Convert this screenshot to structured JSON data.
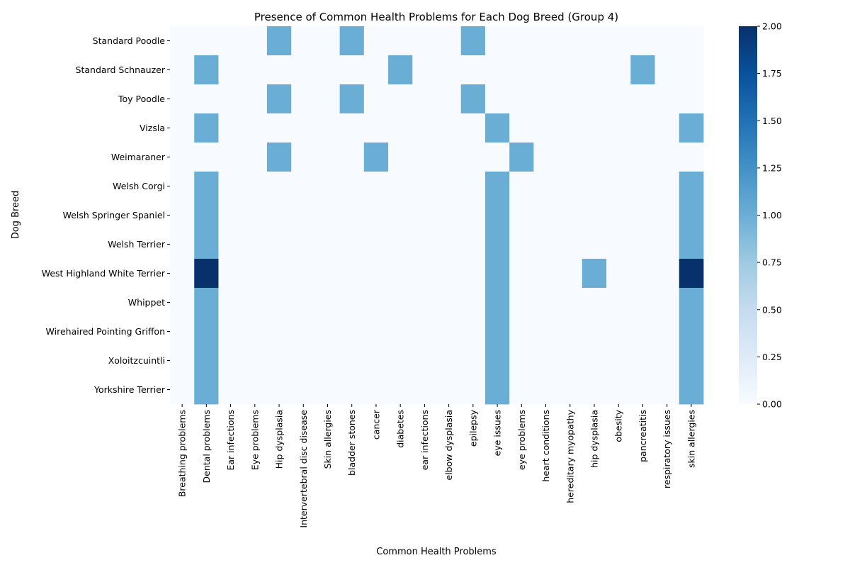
{
  "chart_data": {
    "type": "heatmap",
    "title": "Presence of Common Health Problems for Each Dog Breed (Group 4)",
    "xlabel": "Common Health Problems",
    "ylabel": "Dog Breed",
    "x_categories": [
      "Breathing problems",
      "Dental problems",
      "Ear infections",
      "Eye problems",
      "Hip dysplasia",
      "Intervertebral disc disease",
      "Skin allergies",
      "bladder stones",
      "cancer",
      "diabetes",
      "ear infections",
      "elbow dysplasia",
      "epilepsy",
      "eye issues",
      "eye problems",
      "heart conditions",
      "hereditary myopathy",
      "hip dysplasia",
      "obesity",
      "pancreatitis",
      "respiratory issues",
      "skin allergies"
    ],
    "y_categories": [
      "Standard Poodle",
      "Standard Schnauzer",
      "Toy Poodle",
      "Vizsla",
      "Weimaraner",
      "Welsh Corgi",
      "Welsh Springer Spaniel",
      "Welsh Terrier",
      "West Highland White Terrier",
      "Whippet",
      "Wirehaired Pointing Griffon",
      "Xoloitzcuintli",
      "Yorkshire Terrier"
    ],
    "values": [
      [
        0,
        0,
        0,
        0,
        1,
        0,
        0,
        1,
        0,
        0,
        0,
        0,
        1,
        0,
        0,
        0,
        0,
        0,
        0,
        0,
        0,
        0
      ],
      [
        0,
        1,
        0,
        0,
        0,
        0,
        0,
        0,
        0,
        1,
        0,
        0,
        0,
        0,
        0,
        0,
        0,
        0,
        0,
        1,
        0,
        0
      ],
      [
        0,
        0,
        0,
        0,
        1,
        0,
        0,
        1,
        0,
        0,
        0,
        0,
        1,
        0,
        0,
        0,
        0,
        0,
        0,
        0,
        0,
        0
      ],
      [
        0,
        1,
        0,
        0,
        0,
        0,
        0,
        0,
        0,
        0,
        0,
        0,
        0,
        1,
        0,
        0,
        0,
        0,
        0,
        0,
        0,
        1
      ],
      [
        0,
        0,
        0,
        0,
        1,
        0,
        0,
        0,
        1,
        0,
        0,
        0,
        0,
        0,
        1,
        0,
        0,
        0,
        0,
        0,
        0,
        0
      ],
      [
        0,
        1,
        0,
        0,
        0,
        0,
        0,
        0,
        0,
        0,
        0,
        0,
        0,
        1,
        0,
        0,
        0,
        0,
        0,
        0,
        0,
        1
      ],
      [
        0,
        1,
        0,
        0,
        0,
        0,
        0,
        0,
        0,
        0,
        0,
        0,
        0,
        1,
        0,
        0,
        0,
        0,
        0,
        0,
        0,
        1
      ],
      [
        0,
        1,
        0,
        0,
        0,
        0,
        0,
        0,
        0,
        0,
        0,
        0,
        0,
        1,
        0,
        0,
        0,
        0,
        0,
        0,
        0,
        1
      ],
      [
        0,
        2,
        0,
        0,
        0,
        0,
        0,
        0,
        0,
        0,
        0,
        0,
        0,
        1,
        0,
        0,
        0,
        1,
        0,
        0,
        0,
        2
      ],
      [
        0,
        1,
        0,
        0,
        0,
        0,
        0,
        0,
        0,
        0,
        0,
        0,
        0,
        1,
        0,
        0,
        0,
        0,
        0,
        0,
        0,
        1
      ],
      [
        0,
        1,
        0,
        0,
        0,
        0,
        0,
        0,
        0,
        0,
        0,
        0,
        0,
        1,
        0,
        0,
        0,
        0,
        0,
        0,
        0,
        1
      ],
      [
        0,
        1,
        0,
        0,
        0,
        0,
        0,
        0,
        0,
        0,
        0,
        0,
        0,
        1,
        0,
        0,
        0,
        0,
        0,
        0,
        0,
        1
      ],
      [
        0,
        1,
        0,
        0,
        0,
        0,
        0,
        0,
        0,
        0,
        0,
        0,
        0,
        1,
        0,
        0,
        0,
        0,
        0,
        0,
        0,
        1
      ]
    ],
    "colorbar": {
      "range": [
        0,
        2
      ],
      "ticks": [
        "0.00",
        "0.25",
        "0.50",
        "0.75",
        "1.00",
        "1.25",
        "1.50",
        "1.75",
        "2.00"
      ],
      "colormap": "Blues"
    },
    "colors": {
      "zero": "#f7fbff",
      "one": "#6aaed6",
      "two": "#08306b"
    }
  }
}
